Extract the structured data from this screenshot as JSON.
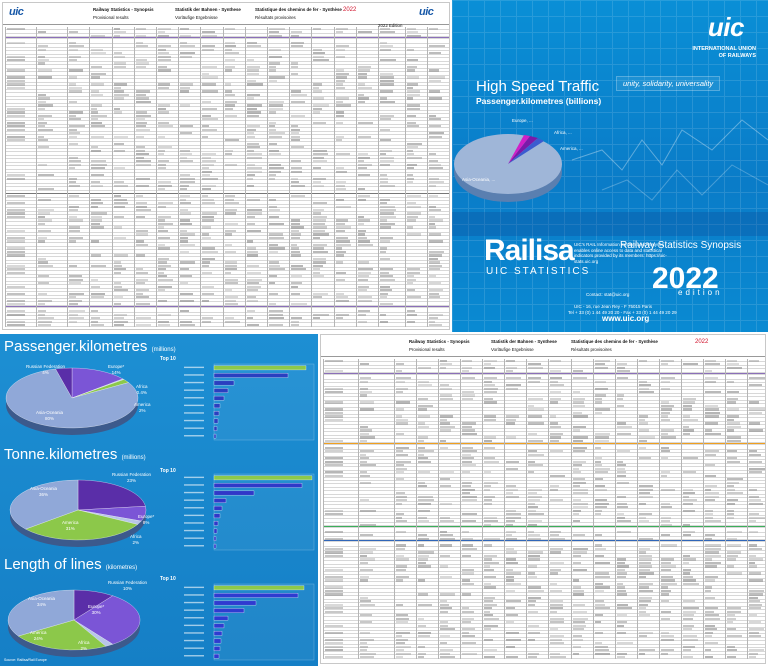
{
  "sheet": {
    "logo": "uic",
    "title_en": "Railway Statistics - Synopsis",
    "sub_en": "Provisional results",
    "title_de": "Statistik der Bahnen - Synthese",
    "sub_de": "Vorläufige Ergebnisse",
    "title_fr": "Statistique des chemins de fer - Synthèse",
    "sub_fr": "Résultats provisoires",
    "year": "2022",
    "edition_label": "2022 Edition"
  },
  "cover": {
    "org_line1": "INTERNATIONAL UNION",
    "org_line2": "OF RAILWAYS",
    "logo": "uic",
    "title": "High Speed Traffic",
    "subtitle": "Passenger.kilometres (billions)",
    "motto": "unity, solidarity, universality",
    "brand": "Railisa",
    "brand_sub": "UIC STATISTICS",
    "blurb": "UIC's RAIL Information System and Analyses enables online access to data and statistical indicators provided by its members: https://uic-stats.uic.org",
    "contact": "Contact: stat@uic.org",
    "address1": "UIC - 16, rue Jean Rey - F 75015 Paris",
    "address2": "Tel + 33 (0) 1 44 49 20 20 - Fax + 33 (0) 1 44 49 20 29",
    "url": "www.uic.org",
    "synopsis": "Railway Statistics Synopsis",
    "year": "2022",
    "edition": "edition",
    "pie_labels": [
      "Asia-Oceania, ...",
      "Europe, ...",
      "Africa, ...",
      "America, ..."
    ]
  },
  "charts": {
    "top10_label": "Top 10",
    "credit": "Source: Railisa/Rail Europe",
    "pie1": {
      "title": "Passenger.kilometres",
      "unit": "(millions)",
      "labels": [
        {
          "name": "Russian Federation",
          "pct": "4%"
        },
        {
          "name": "Europe*",
          "pct": "14%"
        },
        {
          "name": "Africa",
          "pct": "0.4%"
        },
        {
          "name": "America",
          "pct": "2%"
        },
        {
          "name": "Asia-Oceania",
          "pct": "80%"
        }
      ]
    },
    "pie2": {
      "title": "Tonne.kilometres",
      "unit": "(millions)",
      "labels": [
        {
          "name": "Russian Federation",
          "pct": "23%"
        },
        {
          "name": "Asia-Oceania",
          "pct": "36%"
        },
        {
          "name": "Europe*",
          "pct": "8%"
        },
        {
          "name": "America",
          "pct": "31%"
        },
        {
          "name": "Africa",
          "pct": "2%"
        }
      ]
    },
    "pie3": {
      "title": "Length of lines",
      "unit": "(kilometres)",
      "labels": [
        {
          "name": "Russian Federation",
          "pct": "10%"
        },
        {
          "name": "Asia-Oceania",
          "pct": "34%"
        },
        {
          "name": "Europe*",
          "pct": "30%"
        },
        {
          "name": "America",
          "pct": "24%"
        },
        {
          "name": "Africa",
          "pct": "2%"
        }
      ]
    },
    "bar1": [
      0.92,
      0.74,
      0.2,
      0.14,
      0.1,
      0.06,
      0.05,
      0.04,
      0.03,
      0.02
    ],
    "bar2": [
      0.98,
      0.88,
      0.4,
      0.12,
      0.08,
      0.06,
      0.04,
      0.03,
      0.02,
      0.02
    ],
    "bar3": [
      0.9,
      0.84,
      0.42,
      0.3,
      0.14,
      0.1,
      0.08,
      0.07,
      0.06,
      0.05
    ],
    "colors": {
      "asia": "#90a8d8",
      "europe": "#7b55d6",
      "russia": "#5a2ea8",
      "america": "#8cc84a",
      "africa": "#b8c6e8",
      "orange": "#f0a020"
    }
  }
}
